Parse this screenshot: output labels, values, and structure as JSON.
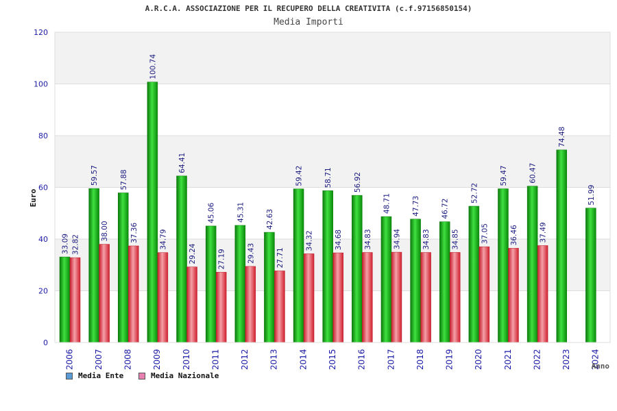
{
  "header": {
    "title": "A.R.C.A. ASSOCIAZIONE PER IL RECUPERO DELLA CREATIVITA (c.f.97156850154)",
    "subtitle": "Media Importi"
  },
  "legend": {
    "items": [
      {
        "label": "Media Ente",
        "color": "#5b9bd5"
      },
      {
        "label": "Media Nazionale",
        "color": "#e87fb1"
      }
    ]
  },
  "chart_data": {
    "type": "bar",
    "title": "A.R.C.A. ASSOCIAZIONE PER IL RECUPERO DELLA CREATIVITA (c.f.97156850154)",
    "subtitle": "Media Importi",
    "xlabel": "Anno",
    "ylabel": "Euro",
    "ylim": [
      0,
      120
    ],
    "yticks": [
      0,
      20,
      40,
      60,
      80,
      100,
      120
    ],
    "grid": true,
    "legend_position": "bottom-left",
    "categories": [
      "2006",
      "2007",
      "2008",
      "2009",
      "2010",
      "2011",
      "2012",
      "2013",
      "2014",
      "2015",
      "2016",
      "2017",
      "2018",
      "2019",
      "2020",
      "2021",
      "2022",
      "2023",
      "2024"
    ],
    "series": [
      {
        "name": "Media Ente",
        "color": "#1fae1f",
        "values": [
          33.09,
          59.57,
          57.88,
          100.74,
          64.41,
          45.06,
          45.31,
          42.63,
          59.42,
          58.71,
          56.92,
          48.71,
          47.73,
          46.72,
          52.72,
          59.47,
          60.47,
          74.48,
          51.99
        ],
        "labels": [
          "33.09",
          "59.57",
          "57.88",
          "100.74",
          "64.41",
          "45.06",
          "45.31",
          "42.63",
          "59.42",
          "58.71",
          "56.92",
          "48.71",
          "47.73",
          "46.72",
          "52.72",
          "59.47",
          "60.47",
          "74.48",
          "51.99"
        ]
      },
      {
        "name": "Media Nazionale",
        "color": "#e0404a",
        "values": [
          32.82,
          38.0,
          37.36,
          34.79,
          29.24,
          27.19,
          29.43,
          27.71,
          34.32,
          34.68,
          34.83,
          34.94,
          34.83,
          34.85,
          37.05,
          36.46,
          37.49,
          null,
          null
        ],
        "labels": [
          "32.82",
          "38.00",
          "37.36",
          "34.79",
          "29.24",
          "27.19",
          "29.43",
          "27.71",
          "34.32",
          "34.68",
          "34.83",
          "34.94",
          "34.83",
          "34.85",
          "37.05",
          "36.46",
          "37.49",
          null,
          null
        ]
      }
    ]
  }
}
